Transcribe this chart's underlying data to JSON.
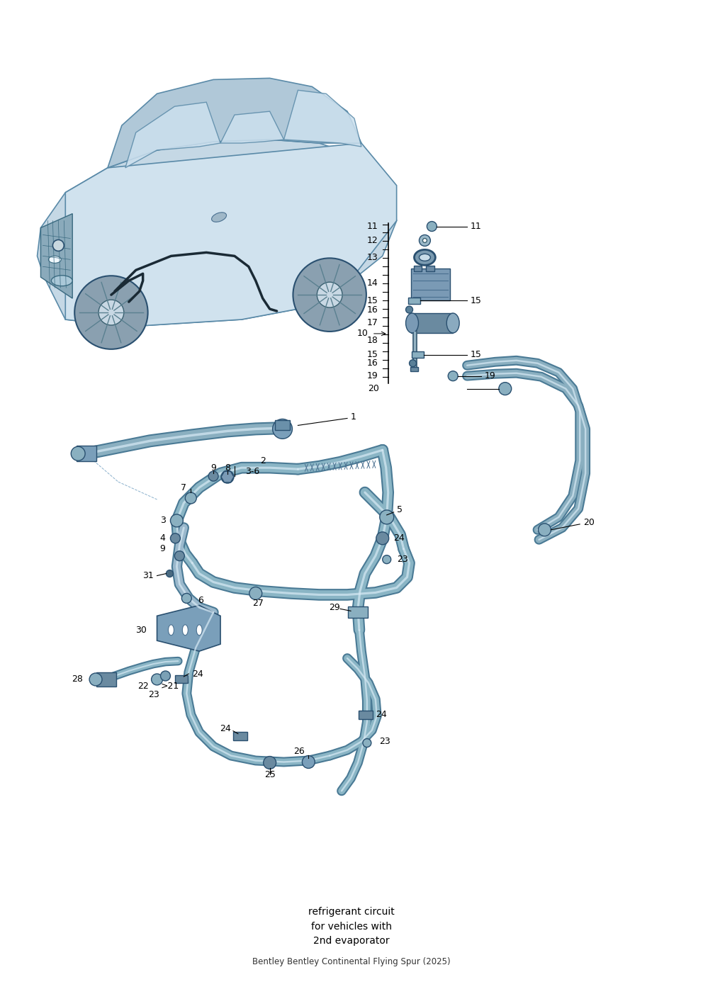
{
  "title": "refrigerant circuit\nfor vehicles with\n2nd evaporator",
  "subtitle": "Bentley Bentley Continental Flying Spur (2025)",
  "background_color": "#ffffff",
  "fig_width": 9.92,
  "fig_height": 14.03,
  "dpi": 100,
  "tube_color": "#8aafc0",
  "tube_dark": "#4a7a95",
  "tube_highlight": "#d8eaf5",
  "part_fill": "#9ab8cc",
  "part_edge": "#2a5070",
  "label_fs": 9,
  "car_body_color": "#b8cdd8",
  "car_edge_color": "#5a8aa8",
  "car_shadow": "#9ab0bc"
}
